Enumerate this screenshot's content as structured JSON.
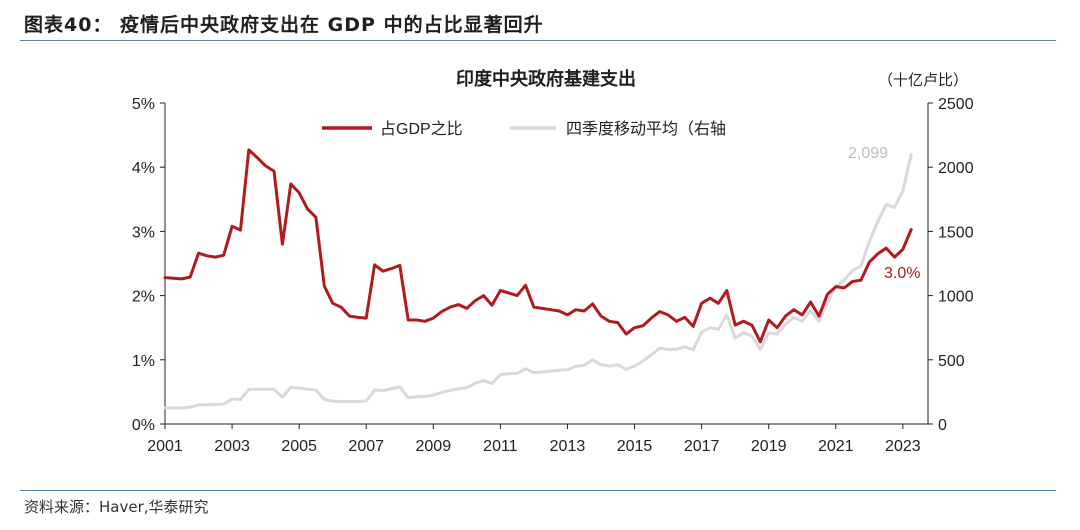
{
  "figure_title": "图表40： 疫情后中央政府支出在 GDP 中的占比显著回升",
  "source_text": "资料来源：Haver,华泰研究",
  "colors": {
    "series_main": "#b01b1f",
    "series_avg": "#d9d9d9",
    "rule": "#5b7ea6",
    "axis": "#222222"
  },
  "chart_data": {
    "type": "line",
    "title": "印度中央政府基建支出",
    "right_axis_unit": "（十亿卢比）",
    "x_ticks": [
      "2001",
      "2003",
      "2005",
      "2007",
      "2009",
      "2011",
      "2013",
      "2015",
      "2017",
      "2019",
      "2021",
      "2023"
    ],
    "xlim": [
      2001,
      2023.75
    ],
    "y_left": {
      "lim": [
        0,
        5
      ],
      "ticks": [
        "0%",
        "1%",
        "2%",
        "3%",
        "4%",
        "5%"
      ]
    },
    "y_right": {
      "lim": [
        0,
        2500
      ],
      "ticks": [
        "0",
        "500",
        "1000",
        "1500",
        "2000",
        "2500"
      ]
    },
    "legend": {
      "position": "top-left"
    },
    "series": [
      {
        "name": "占GDP之比",
        "axis": "left",
        "end_label": "3.0%",
        "x": [
          2001.0,
          2001.5,
          2001.75,
          2002.0,
          2002.25,
          2002.5,
          2002.75,
          2003.0,
          2003.25,
          2003.5,
          2003.75,
          2004.0,
          2004.25,
          2004.5,
          2004.75,
          2005.0,
          2005.25,
          2005.5,
          2005.75,
          2006.0,
          2006.25,
          2006.5,
          2006.75,
          2007.0,
          2007.25,
          2007.5,
          2007.75,
          2008.0,
          2008.25,
          2008.5,
          2008.75,
          2009.0,
          2009.25,
          2009.5,
          2009.75,
          2010.0,
          2010.25,
          2010.5,
          2010.75,
          2011.0,
          2011.25,
          2011.5,
          2011.75,
          2012.0,
          2012.25,
          2012.5,
          2012.75,
          2013.0,
          2013.25,
          2013.5,
          2013.75,
          2014.0,
          2014.25,
          2014.5,
          2014.75,
          2015.0,
          2015.25,
          2015.5,
          2015.75,
          2016.0,
          2016.25,
          2016.5,
          2016.75,
          2017.0,
          2017.25,
          2017.5,
          2017.75,
          2018.0,
          2018.25,
          2018.5,
          2018.75,
          2019.0,
          2019.25,
          2019.5,
          2019.75,
          2020.0,
          2020.25,
          2020.5,
          2020.75,
          2021.0,
          2021.25,
          2021.5,
          2021.75,
          2022.0,
          2022.25,
          2022.5,
          2022.75,
          2023.0,
          2023.25
        ],
        "values": [
          2.28,
          2.26,
          2.29,
          2.66,
          2.62,
          2.6,
          2.63,
          3.08,
          3.02,
          4.27,
          4.15,
          4.02,
          3.94,
          2.8,
          3.74,
          3.6,
          3.35,
          3.22,
          2.15,
          1.88,
          1.82,
          1.68,
          1.66,
          1.65,
          2.48,
          2.38,
          2.42,
          2.47,
          1.62,
          1.62,
          1.6,
          1.65,
          1.75,
          1.82,
          1.86,
          1.8,
          1.92,
          2.0,
          1.85,
          2.08,
          2.04,
          2.0,
          2.16,
          1.82,
          1.8,
          1.78,
          1.76,
          1.7,
          1.78,
          1.76,
          1.87,
          1.68,
          1.6,
          1.58,
          1.4,
          1.5,
          1.53,
          1.65,
          1.75,
          1.7,
          1.6,
          1.66,
          1.52,
          1.88,
          1.96,
          1.88,
          2.08,
          1.54,
          1.6,
          1.54,
          1.28,
          1.62,
          1.5,
          1.68,
          1.78,
          1.7,
          1.9,
          1.68,
          2.02,
          2.14,
          2.12,
          2.22,
          2.24,
          2.52,
          2.65,
          2.74,
          2.6,
          2.72,
          3.03
        ]
      },
      {
        "name": "四季度移动平均（右轴",
        "axis": "right",
        "end_label": "2,099",
        "x": [
          2001.0,
          2001.5,
          2001.75,
          2002.0,
          2002.25,
          2002.5,
          2002.75,
          2003.0,
          2003.25,
          2003.5,
          2003.75,
          2004.0,
          2004.25,
          2004.5,
          2004.75,
          2005.0,
          2005.25,
          2005.5,
          2005.75,
          2006.0,
          2006.25,
          2006.5,
          2006.75,
          2007.0,
          2007.25,
          2007.5,
          2007.75,
          2008.0,
          2008.25,
          2008.5,
          2008.75,
          2009.0,
          2009.25,
          2009.5,
          2009.75,
          2010.0,
          2010.25,
          2010.5,
          2010.75,
          2011.0,
          2011.25,
          2011.5,
          2011.75,
          2012.0,
          2012.25,
          2012.5,
          2012.75,
          2013.0,
          2013.25,
          2013.5,
          2013.75,
          2014.0,
          2014.25,
          2014.5,
          2014.75,
          2015.0,
          2015.25,
          2015.5,
          2015.75,
          2016.0,
          2016.25,
          2016.5,
          2016.75,
          2017.0,
          2017.25,
          2017.5,
          2017.75,
          2018.0,
          2018.25,
          2018.5,
          2018.75,
          2019.0,
          2019.25,
          2019.5,
          2019.75,
          2020.0,
          2020.25,
          2020.5,
          2020.75,
          2021.0,
          2021.25,
          2021.5,
          2021.75,
          2022.0,
          2022.25,
          2022.5,
          2022.75,
          2023.0,
          2023.25
        ],
        "values": [
          125,
          125,
          130,
          150,
          150,
          152,
          155,
          195,
          190,
          270,
          270,
          270,
          270,
          210,
          285,
          280,
          270,
          265,
          190,
          178,
          175,
          175,
          175,
          180,
          265,
          260,
          275,
          290,
          205,
          212,
          215,
          225,
          245,
          262,
          275,
          282,
          318,
          338,
          315,
          385,
          392,
          395,
          430,
          400,
          405,
          412,
          420,
          422,
          450,
          458,
          500,
          462,
          452,
          462,
          425,
          452,
          490,
          538,
          590,
          580,
          582,
          602,
          578,
          715,
          750,
          738,
          850,
          670,
          710,
          685,
          580,
          710,
          700,
          778,
          830,
          800,
          885,
          800,
          945,
          1070,
          1120,
          1195,
          1230,
          1420,
          1575,
          1710,
          1685,
          1815,
          2099
        ]
      }
    ]
  }
}
